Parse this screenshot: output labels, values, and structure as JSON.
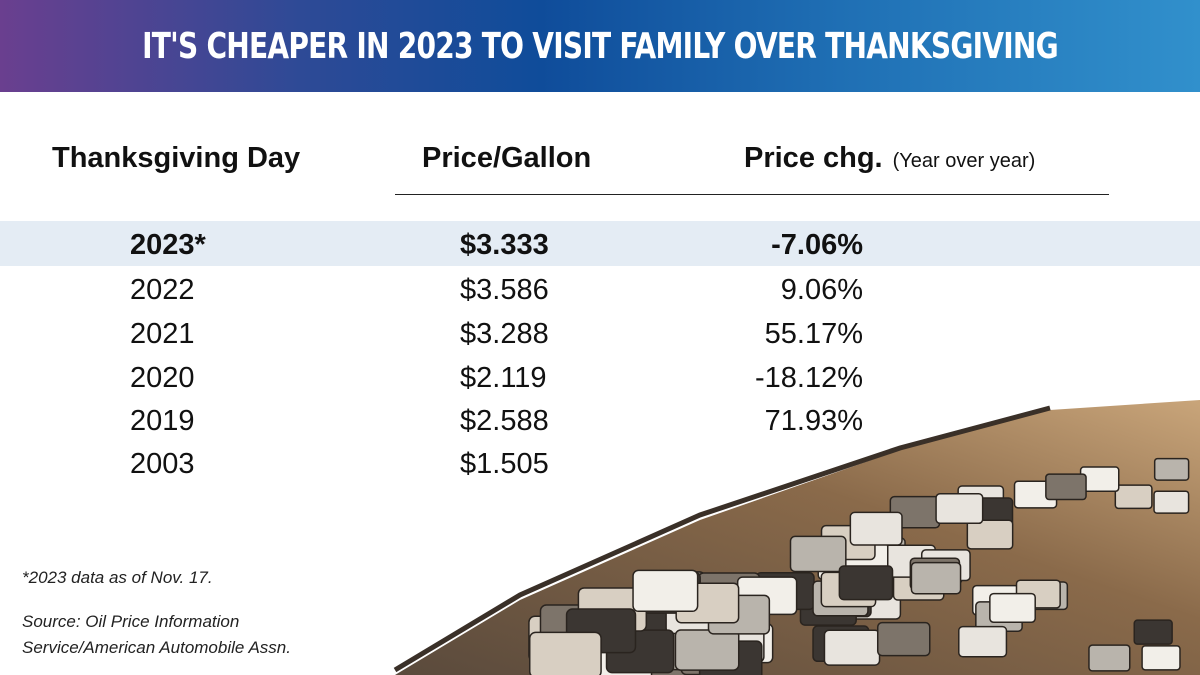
{
  "header": {
    "title": "IT'S CHEAPER IN 2023 TO VISIT FAMILY OVER THANKSGIVING"
  },
  "columns": {
    "day": "Thanksgiving Day",
    "price": "Price/Gallon",
    "change": "Price chg.",
    "change_note": "(Year over year)"
  },
  "rows": [
    {
      "year": "2023*",
      "price": "$3.333",
      "change": "-7.06%",
      "highlight": true
    },
    {
      "year": "2022",
      "price": "$3.586",
      "change": "9.06%"
    },
    {
      "year": "2021",
      "price": "$3.288",
      "change": "55.17%"
    },
    {
      "year": "2020",
      "price": "$2.119",
      "change": "-18.12%"
    },
    {
      "year": "2019",
      "price": "$2.588",
      "change": "71.93%"
    },
    {
      "year": "2003",
      "price": "$1.505",
      "change": ""
    }
  ],
  "footnote": "*2023 data as of Nov. 17.",
  "source_line1": "Source: Oil Price Information",
  "source_line2": "Service/American Automobile Assn.",
  "colors": {
    "gradient_start": "#6a3f8f",
    "gradient_mid": "#0f4c9a",
    "gradient_end": "#3190cc",
    "highlight_row": "#e4ecf4"
  },
  "chart_data": {
    "type": "table",
    "title": "IT'S CHEAPER IN 2023 TO VISIT FAMILY OVER THANKSGIVING",
    "columns": [
      "Thanksgiving Day",
      "Price/Gallon",
      "Price chg. (Year over year)"
    ],
    "data": [
      [
        "2023*",
        3.333,
        -7.06
      ],
      [
        "2022",
        3.586,
        9.06
      ],
      [
        "2021",
        3.288,
        55.17
      ],
      [
        "2020",
        2.119,
        -18.12
      ],
      [
        "2019",
        2.588,
        71.93
      ],
      [
        "2003",
        1.505,
        null
      ]
    ]
  }
}
